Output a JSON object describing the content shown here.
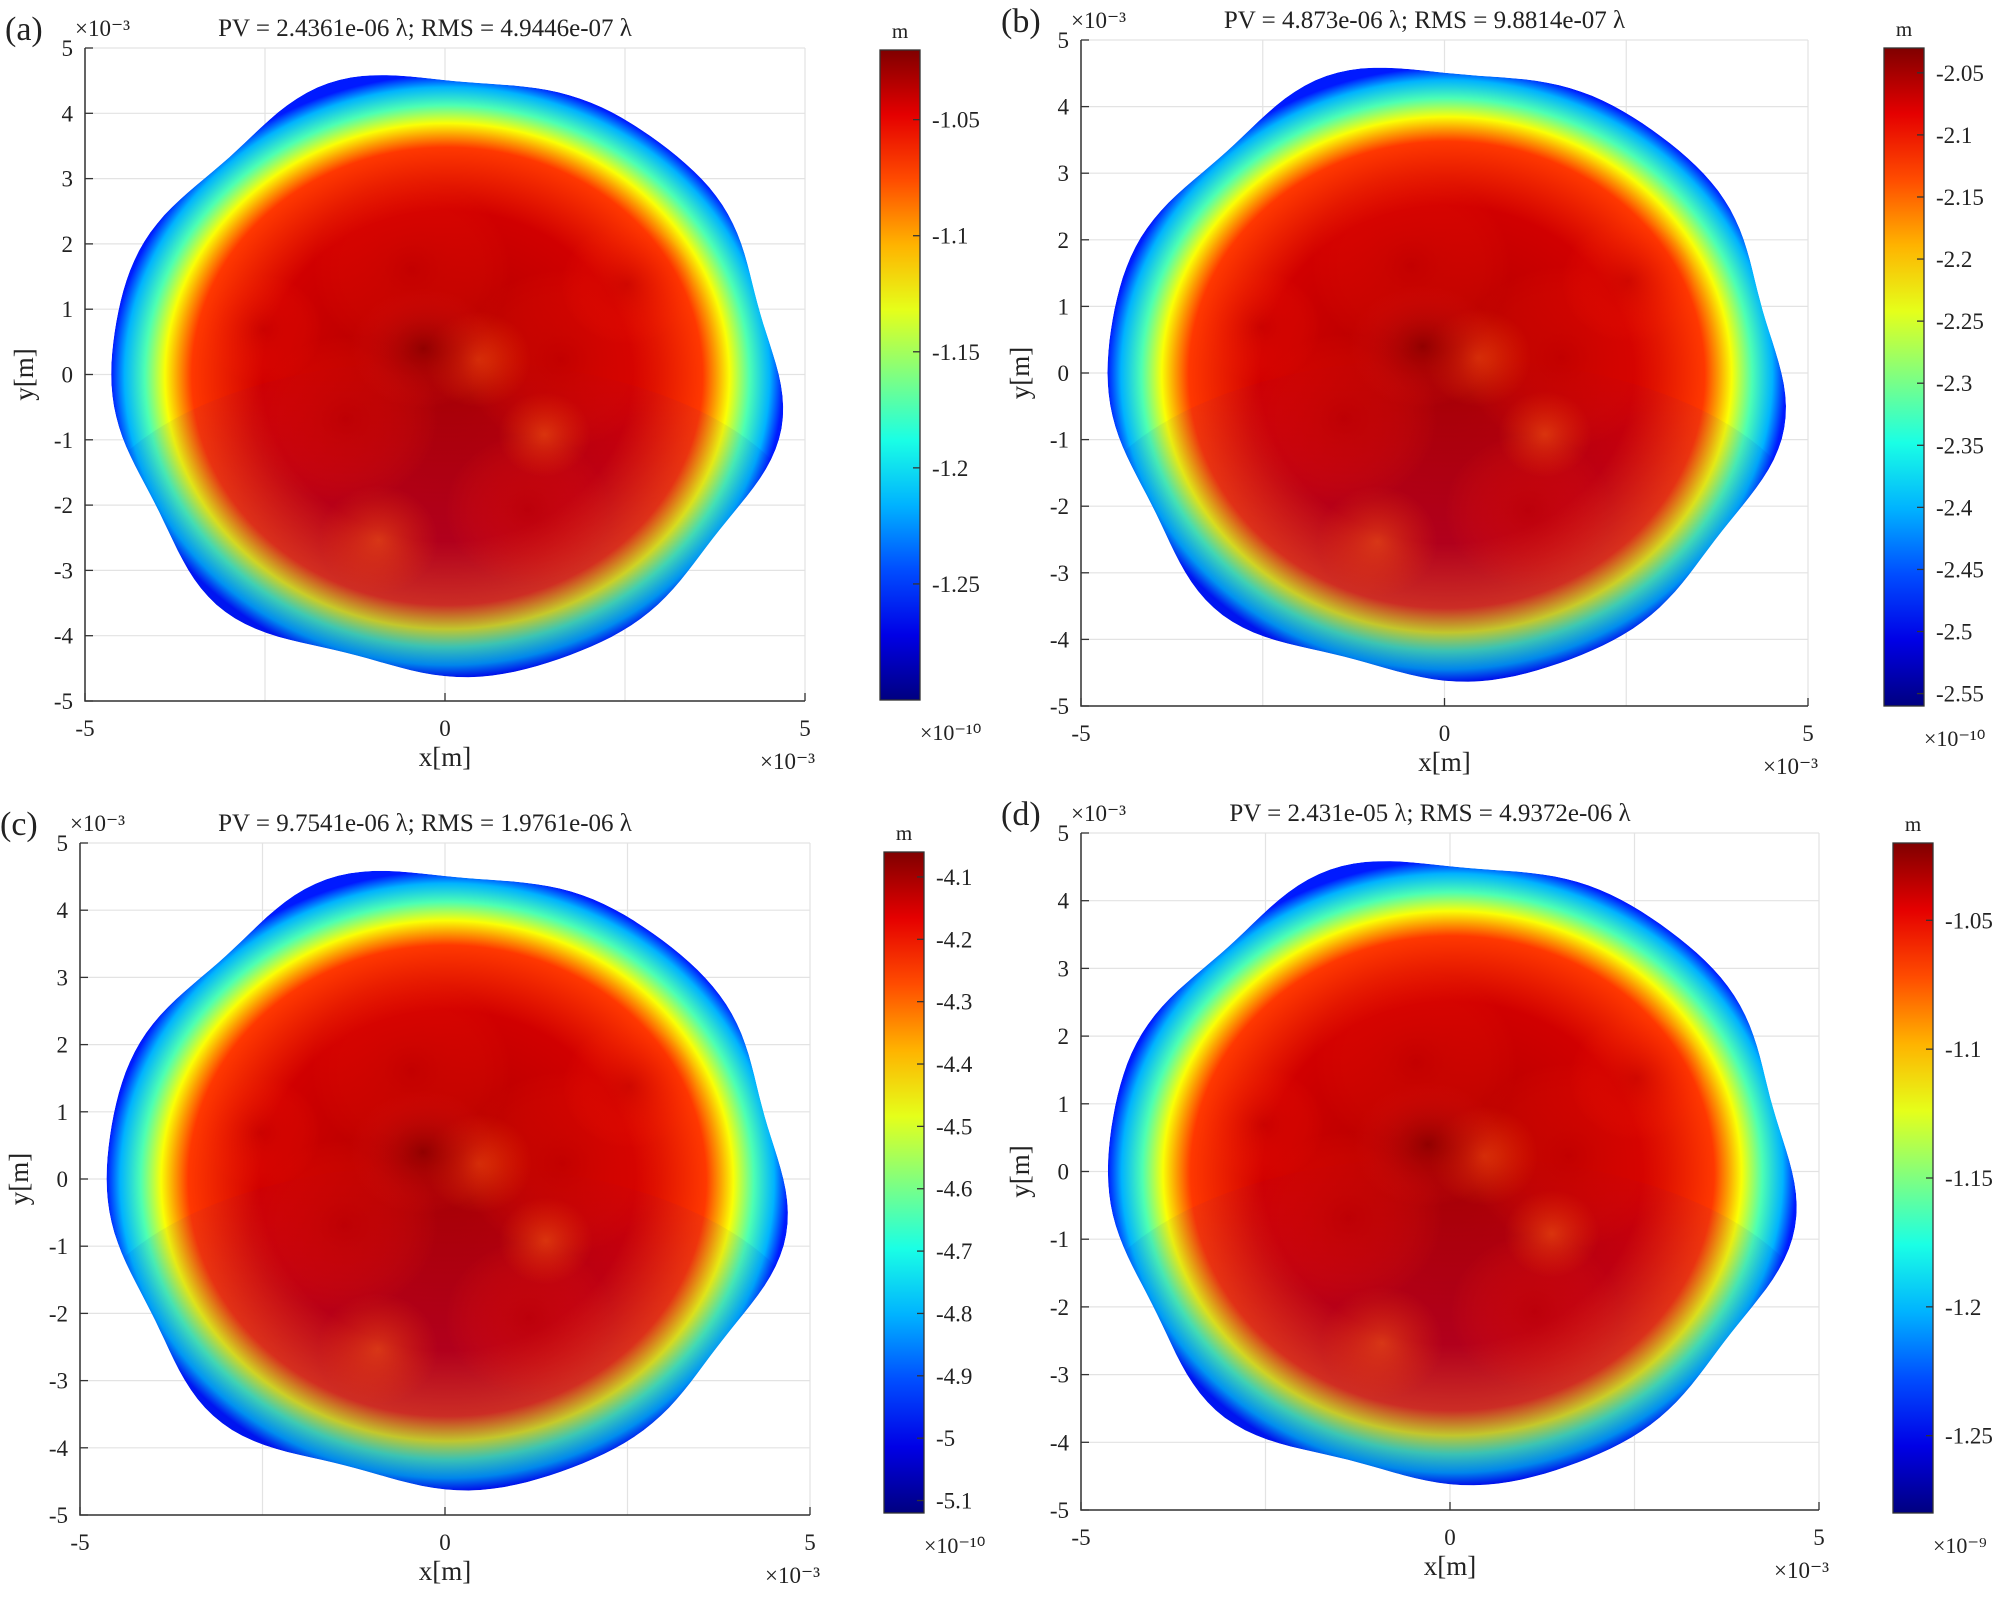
{
  "chart_data": [
    {
      "type": "heatmap",
      "panel_label": "(a)",
      "title": "PV = 2.4361e-06 λ; RMS = 4.9446e-07 λ",
      "xlabel": "x[m]",
      "ylabel": "y[m]",
      "x_exponent": "×10⁻³",
      "y_exponent": "×10⁻³",
      "xlim": [
        -5,
        5
      ],
      "ylim": [
        -5,
        5
      ],
      "x_ticks": [
        -5,
        0,
        5
      ],
      "y_ticks": [
        -5,
        -4,
        -3,
        -2,
        -1,
        0,
        1,
        2,
        3,
        4,
        5
      ],
      "grid": true,
      "colorbar": {
        "unit": "m",
        "exponent": "×10⁻¹⁰",
        "range": [
          -1.3,
          -1.02
        ],
        "ticks": [
          -1.05,
          -1.1,
          -1.15,
          -1.2,
          -1.25
        ],
        "colormap": "jet"
      }
    },
    {
      "type": "heatmap",
      "panel_label": "(b)",
      "title": "PV = 4.873e-06 λ; RMS = 9.8814e-07 λ",
      "xlabel": "x[m]",
      "ylabel": "y[m]",
      "x_exponent": "×10⁻³",
      "y_exponent": "×10⁻³",
      "xlim": [
        -5,
        5
      ],
      "ylim": [
        -5,
        5
      ],
      "x_ticks": [
        -5,
        0,
        5
      ],
      "y_ticks": [
        -5,
        -4,
        -3,
        -2,
        -1,
        0,
        1,
        2,
        3,
        4,
        5
      ],
      "grid": true,
      "colorbar": {
        "unit": "m",
        "exponent": "×10⁻¹⁰",
        "range": [
          -2.56,
          -2.03
        ],
        "ticks": [
          -2.05,
          -2.1,
          -2.15,
          -2.2,
          -2.25,
          -2.3,
          -2.35,
          -2.4,
          -2.45,
          -2.5,
          -2.55
        ],
        "colormap": "jet"
      }
    },
    {
      "type": "heatmap",
      "panel_label": "(c)",
      "title": "PV = 9.7541e-06 λ; RMS = 1.9761e-06 λ",
      "xlabel": "x[m]",
      "ylabel": "y[m]",
      "x_exponent": "×10⁻³",
      "y_exponent": "×10⁻³",
      "xlim": [
        -5,
        5
      ],
      "ylim": [
        -5,
        5
      ],
      "x_ticks": [
        -5,
        0,
        5
      ],
      "y_ticks": [
        -5,
        -4,
        -3,
        -2,
        -1,
        0,
        1,
        2,
        3,
        4,
        5
      ],
      "grid": true,
      "colorbar": {
        "unit": "m",
        "exponent": "×10⁻¹⁰",
        "range": [
          -5.12,
          -4.06
        ],
        "ticks": [
          -4.1,
          -4.2,
          -4.3,
          -4.4,
          -4.5,
          -4.6,
          -4.7,
          -4.8,
          -4.9,
          -5,
          -5.1
        ],
        "colormap": "jet"
      }
    },
    {
      "type": "heatmap",
      "panel_label": "(d)",
      "title": "PV = 2.431e-05 λ; RMS = 4.9372e-06 λ",
      "xlabel": "x[m]",
      "ylabel": "y[m]",
      "x_exponent": "×10⁻³",
      "y_exponent": "×10⁻³",
      "xlim": [
        -5,
        5
      ],
      "ylim": [
        -5,
        5
      ],
      "x_ticks": [
        -5,
        0,
        5
      ],
      "y_ticks": [
        -5,
        -4,
        -3,
        -2,
        -1,
        0,
        1,
        2,
        3,
        4,
        5
      ],
      "grid": true,
      "colorbar": {
        "unit": "m",
        "exponent": "×10⁻⁹",
        "range": [
          -1.28,
          -1.02
        ],
        "ticks": [
          -1.05,
          -1.1,
          -1.15,
          -1.2,
          -1.25
        ],
        "colormap": "jet"
      }
    }
  ]
}
